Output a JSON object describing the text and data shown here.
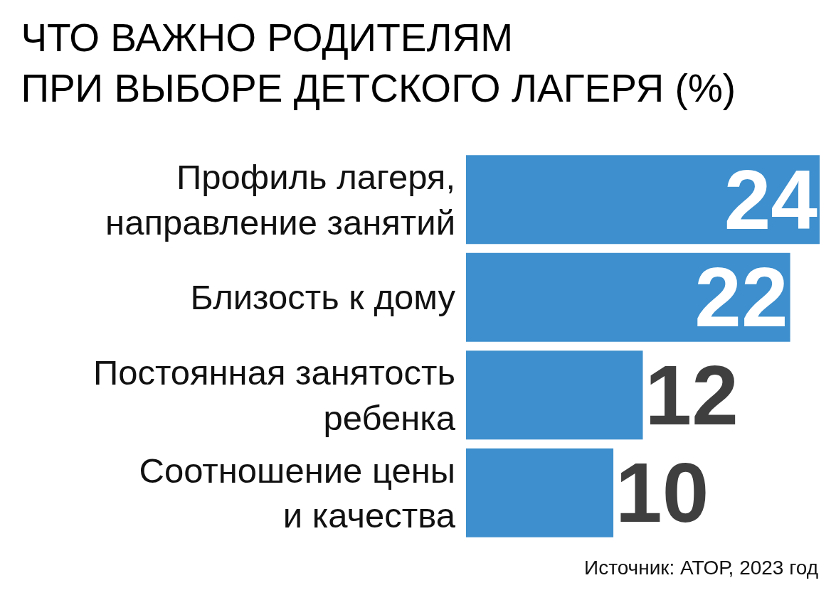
{
  "chart_data": {
    "type": "bar",
    "orientation": "horizontal",
    "title": "ЧТО ВАЖНО РОДИТЕЛЯМ\nПРИ ВЫБОРЕ ДЕТСКОГО ЛАГЕРЯ (%)",
    "categories": [
      "Профиль лагеря,\nнаправление занятий",
      "Близость к дому",
      "Постоянная занятость\nребенка",
      "Соотношение цены\nи качества"
    ],
    "values": [
      24,
      22,
      12,
      10
    ],
    "color": "#3d8fcd",
    "xlim": [
      0,
      24
    ],
    "data_labels": true,
    "tick_labels": "y",
    "annotations": [
      "Источник: АТОР, 2023 год"
    ]
  }
}
